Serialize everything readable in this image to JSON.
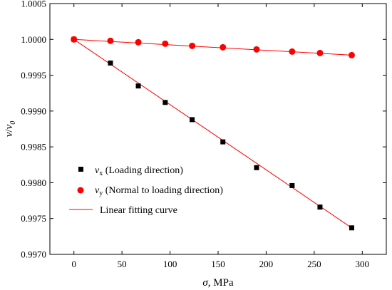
{
  "chart_data": {
    "type": "scatter",
    "title": "",
    "xlabel": {
      "symbol": "σ",
      "rest": ", MPa"
    },
    "ylabel": {
      "v": "v",
      "slash": "/",
      "v0": "v",
      "sub0": "0"
    },
    "xlim": [
      -25,
      325
    ],
    "ylim": [
      0.997,
      1.0005
    ],
    "xticks": [
      0,
      50,
      100,
      150,
      200,
      250,
      300
    ],
    "yticks": [
      0.997,
      0.9975,
      0.998,
      0.9985,
      0.999,
      0.9995,
      1.0,
      1.0005
    ],
    "ytick_labels": [
      "0.9970",
      "0.9975",
      "0.9980",
      "0.9985",
      "0.9990",
      "0.9995",
      "1.0000",
      "1.0005"
    ],
    "grid": false,
    "legend_position": "bottom-left",
    "series": [
      {
        "legend_symbol": "v",
        "legend_sub": "x",
        "legend_rest": " (Loading direction)",
        "marker": "square",
        "color": "#000000",
        "x": [
          0,
          38,
          67,
          95,
          123,
          155,
          190,
          227,
          256,
          289
        ],
        "y": [
          1.0,
          0.99967,
          0.99935,
          0.99912,
          0.99888,
          0.99857,
          0.99821,
          0.99796,
          0.99766,
          0.99737
        ]
      },
      {
        "legend_symbol": "v",
        "legend_sub": "y",
        "legend_rest": " (Normal to loading direction)",
        "marker": "circle",
        "color": "#ff0000",
        "x": [
          0,
          38,
          67,
          95,
          123,
          155,
          190,
          227,
          256,
          289
        ],
        "y": [
          1.0,
          0.99998,
          0.99996,
          0.99994,
          0.99991,
          0.99989,
          0.99986,
          0.99983,
          0.99981,
          0.99978
        ]
      }
    ],
    "fits": [
      {
        "x": [
          0,
          289
        ],
        "y": [
          1.0,
          0.99737
        ],
        "color": "#ff0000"
      },
      {
        "x": [
          0,
          289
        ],
        "y": [
          1.0,
          0.99978
        ],
        "color": "#ff0000"
      }
    ],
    "fit_legend_label": "Linear fitting curve"
  }
}
